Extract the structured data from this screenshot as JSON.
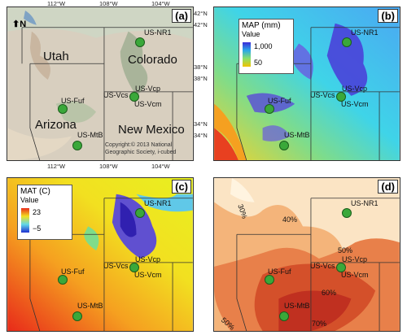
{
  "ticks": {
    "top": [
      "112°W",
      "108°W",
      "104°W"
    ],
    "left": [
      "42°N",
      "38°N",
      "34°N"
    ],
    "right": [
      "42°N",
      "38°N",
      "34°N"
    ],
    "bottom": [
      "112°W",
      "108°W",
      "104°W"
    ]
  },
  "panels": {
    "a": {
      "label": "(a)",
      "north": "N",
      "states": [
        "Utah",
        "Colorado",
        "Arizona",
        "New Mexico"
      ],
      "copyright": [
        "Copyright:© 2013 National",
        "Geographic Society, i-cubed"
      ]
    },
    "b": {
      "label": "(b)",
      "legend_title": "MAP (mm)",
      "legend_value": "Value",
      "legend_max": "1,000",
      "legend_min": "50"
    },
    "c": {
      "label": "(c)",
      "legend_title": "MAT (C)",
      "legend_value": "Value",
      "legend_max": "23",
      "legend_min": "−5"
    },
    "d": {
      "label": "(d)",
      "contours": [
        "30%",
        "40%",
        "50%",
        "60%",
        "70%",
        "50%"
      ]
    }
  },
  "sites": [
    "US-NR1",
    "US-Fuf",
    "US-Vcs",
    "US-Vcp",
    "US-Vcm",
    "US-MtB"
  ],
  "colors": {
    "site_marker": "#3aa83a",
    "map_high": "#3b2bd8",
    "map_low": "#f2c200",
    "mat_high": "#e82a1a",
    "mat_low": "#2030d0"
  }
}
